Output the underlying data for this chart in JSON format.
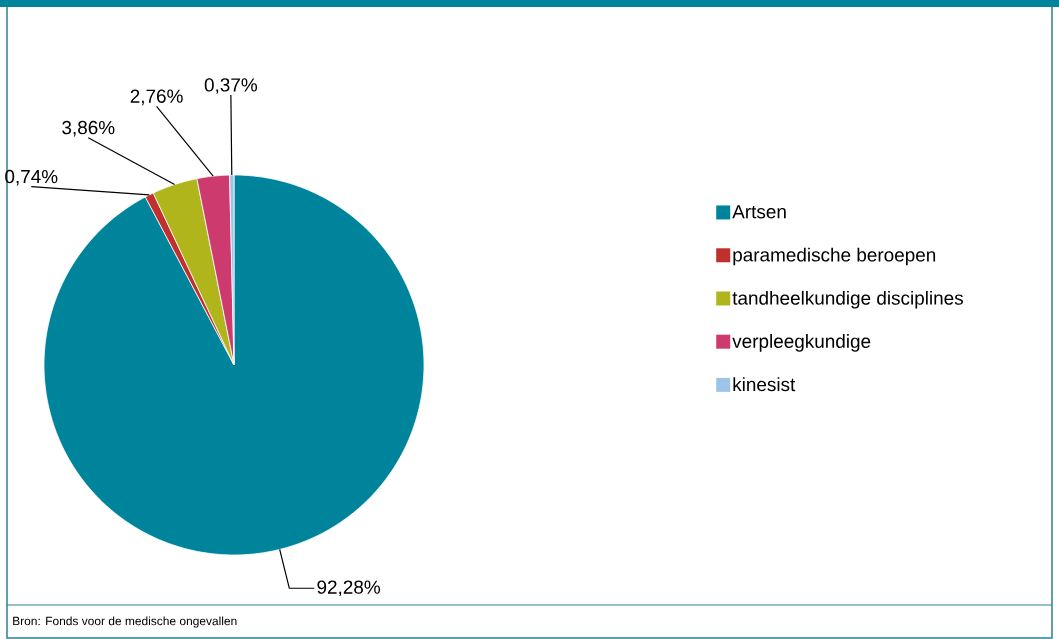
{
  "chart_data": {
    "type": "pie",
    "categories": [
      "Artsen",
      "paramedische beroepen",
      "tandheelkundige disciplines",
      "verpleegkundige",
      "kinesist"
    ],
    "values": [
      92.28,
      0.74,
      3.86,
      2.76,
      0.37
    ],
    "colors": [
      "#00849b",
      "#c0302f",
      "#b1b51c",
      "#cd3a6d",
      "#9dc3e6"
    ],
    "value_labels": [
      "92,28%",
      "0,74%",
      "3,86%",
      "2,76%",
      "0,37%"
    ],
    "legend": "right",
    "annotations": [
      "Bron: Fonds voor de medische ongevallen"
    ]
  }
}
